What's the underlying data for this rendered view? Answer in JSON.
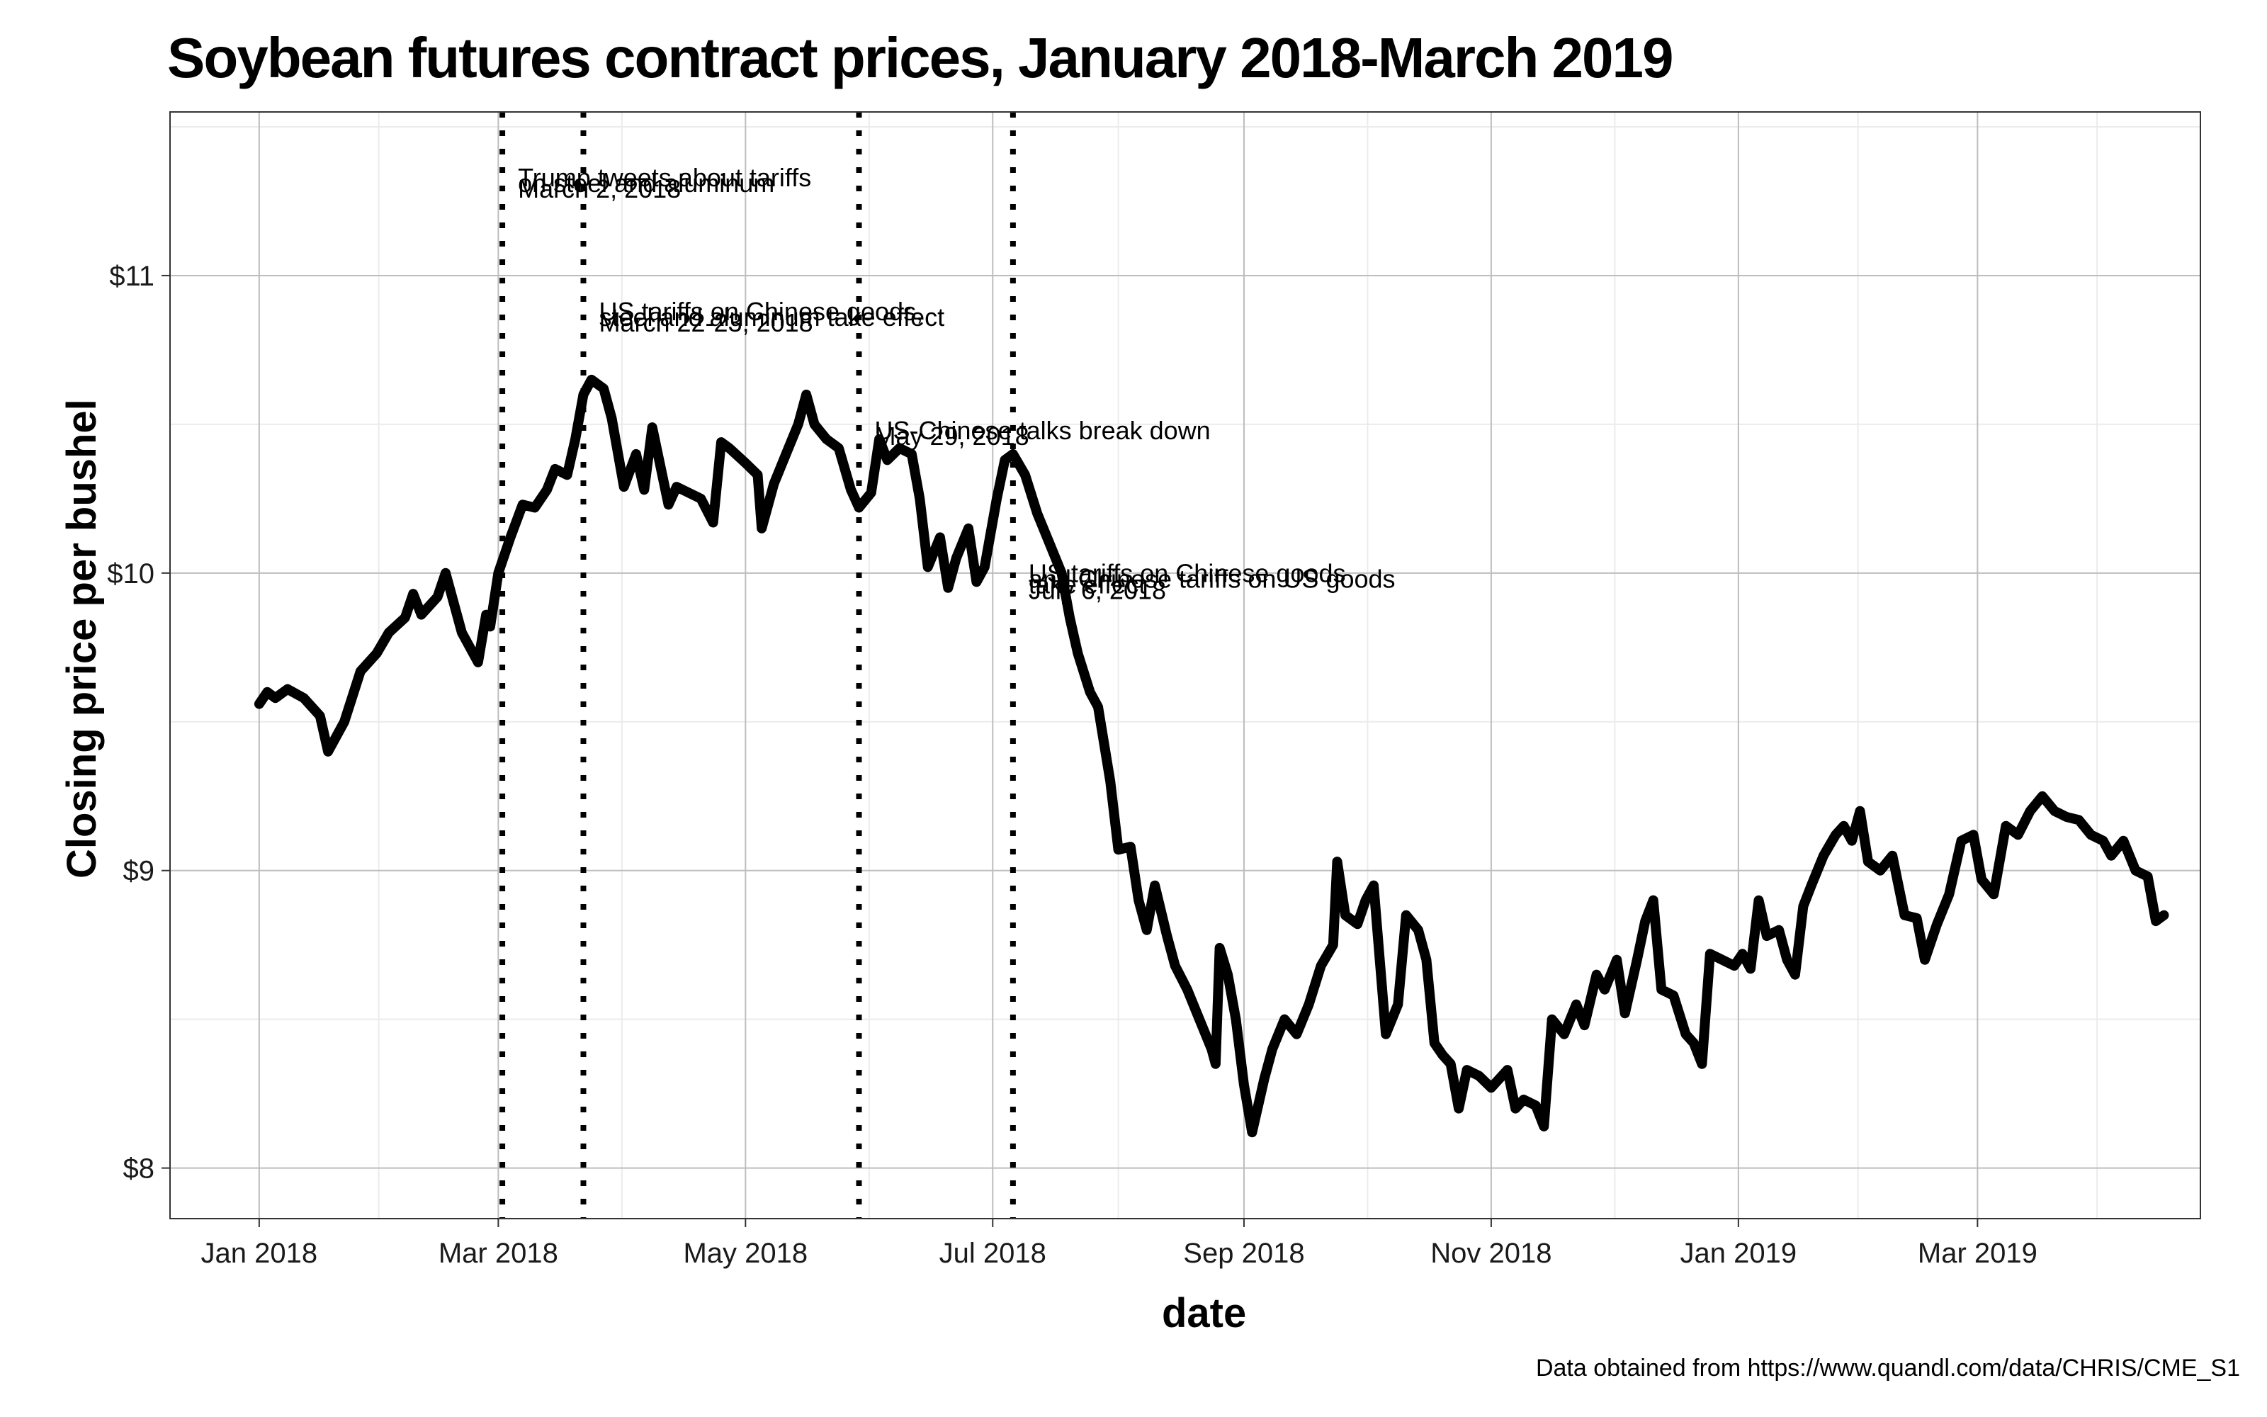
{
  "chart_data": {
    "type": "line",
    "title": "Soybean futures contract prices, January 2018-March 2019",
    "xlabel": "date",
    "ylabel": "Closing price per bushel",
    "caption": "Data obtained from https://www.quandl.com/data/CHRIS/CME_S1",
    "xlim": [
      "2017-12-10",
      "2019-04-25"
    ],
    "ylim": [
      7.83,
      11.55
    ],
    "grid": true,
    "x_ticks": [
      {
        "date": "2018-01-01",
        "label": "Jan 2018"
      },
      {
        "date": "2018-03-01",
        "label": "Mar 2018"
      },
      {
        "date": "2018-05-01",
        "label": "May 2018"
      },
      {
        "date": "2018-07-01",
        "label": "Jul 2018"
      },
      {
        "date": "2018-09-01",
        "label": "Sep 2018"
      },
      {
        "date": "2018-11-01",
        "label": "Nov 2018"
      },
      {
        "date": "2019-01-01",
        "label": "Jan 2019"
      },
      {
        "date": "2019-03-01",
        "label": "Mar 2019"
      }
    ],
    "y_ticks": [
      {
        "value": 8,
        "label": "$8"
      },
      {
        "value": 9,
        "label": "$9"
      },
      {
        "value": 10,
        "label": "$10"
      },
      {
        "value": 11,
        "label": "$11"
      }
    ],
    "events": [
      {
        "date": "2018-03-02",
        "label_y": 11.3,
        "lines": [
          "Trump tweets about tariffs",
          "on steel and aluminum",
          "March 2, 2018"
        ]
      },
      {
        "date": "2018-03-22",
        "label_y": 10.85,
        "lines": [
          "US tariffs on Chinese goods,",
          "steel and aluminum take effect",
          "March 22-23, 2018"
        ]
      },
      {
        "date": "2018-05-29",
        "label_y": 10.45,
        "lines": [
          "US-Chinese talks break down",
          "May 29, 2018"
        ]
      },
      {
        "date": "2018-07-06",
        "label_y": 9.97,
        "lines": [
          "US tariffs on Chinese goods",
          "and Chinese tariffs on US goods",
          "take effect",
          "July 6, 2018"
        ]
      }
    ],
    "series": [
      {
        "color": "#000000",
        "points": [
          [
            "2018-01-01",
            9.56
          ],
          [
            "2018-01-03",
            9.6
          ],
          [
            "2018-01-05",
            9.58
          ],
          [
            "2018-01-08",
            9.61
          ],
          [
            "2018-01-12",
            9.58
          ],
          [
            "2018-01-16",
            9.52
          ],
          [
            "2018-01-18",
            9.4
          ],
          [
            "2018-01-22",
            9.5
          ],
          [
            "2018-01-26",
            9.67
          ],
          [
            "2018-01-30",
            9.73
          ],
          [
            "2018-02-02",
            9.8
          ],
          [
            "2018-02-06",
            9.85
          ],
          [
            "2018-02-08",
            9.93
          ],
          [
            "2018-02-10",
            9.86
          ],
          [
            "2018-02-14",
            9.92
          ],
          [
            "2018-02-16",
            10.0
          ],
          [
            "2018-02-20",
            9.8
          ],
          [
            "2018-02-24",
            9.7
          ],
          [
            "2018-02-26",
            9.86
          ],
          [
            "2018-02-27",
            9.82
          ],
          [
            "2018-03-01",
            10.0
          ],
          [
            "2018-03-04",
            10.12
          ],
          [
            "2018-03-07",
            10.23
          ],
          [
            "2018-03-10",
            10.22
          ],
          [
            "2018-03-13",
            10.28
          ],
          [
            "2018-03-15",
            10.35
          ],
          [
            "2018-03-18",
            10.33
          ],
          [
            "2018-03-20",
            10.45
          ],
          [
            "2018-03-22",
            10.6
          ],
          [
            "2018-03-24",
            10.65
          ],
          [
            "2018-03-27",
            10.62
          ],
          [
            "2018-03-29",
            10.52
          ],
          [
            "2018-04-01",
            10.29
          ],
          [
            "2018-04-04",
            10.4
          ],
          [
            "2018-04-06",
            10.28
          ],
          [
            "2018-04-08",
            10.49
          ],
          [
            "2018-04-12",
            10.23
          ],
          [
            "2018-04-14",
            10.29
          ],
          [
            "2018-04-20",
            10.25
          ],
          [
            "2018-04-23",
            10.17
          ],
          [
            "2018-04-25",
            10.44
          ],
          [
            "2018-04-27",
            10.42
          ],
          [
            "2018-05-01",
            10.37
          ],
          [
            "2018-05-04",
            10.33
          ],
          [
            "2018-05-05",
            10.15
          ],
          [
            "2018-05-08",
            10.3
          ],
          [
            "2018-05-11",
            10.4
          ],
          [
            "2018-05-14",
            10.5
          ],
          [
            "2018-05-16",
            10.6
          ],
          [
            "2018-05-18",
            10.5
          ],
          [
            "2018-05-21",
            10.45
          ],
          [
            "2018-05-24",
            10.42
          ],
          [
            "2018-05-27",
            10.28
          ],
          [
            "2018-05-29",
            10.22
          ],
          [
            "2018-06-01",
            10.27
          ],
          [
            "2018-06-03",
            10.45
          ],
          [
            "2018-06-05",
            10.38
          ],
          [
            "2018-06-08",
            10.42
          ],
          [
            "2018-06-11",
            10.4
          ],
          [
            "2018-06-13",
            10.25
          ],
          [
            "2018-06-15",
            10.02
          ],
          [
            "2018-06-18",
            10.12
          ],
          [
            "2018-06-20",
            9.95
          ],
          [
            "2018-06-22",
            10.05
          ],
          [
            "2018-06-25",
            10.15
          ],
          [
            "2018-06-27",
            9.97
          ],
          [
            "2018-06-29",
            10.02
          ],
          [
            "2018-07-02",
            10.25
          ],
          [
            "2018-07-04",
            10.38
          ],
          [
            "2018-07-06",
            10.4
          ],
          [
            "2018-07-09",
            10.33
          ],
          [
            "2018-07-12",
            10.2
          ],
          [
            "2018-07-15",
            10.1
          ],
          [
            "2018-07-18",
            10.0
          ],
          [
            "2018-07-20",
            9.85
          ],
          [
            "2018-07-22",
            9.73
          ],
          [
            "2018-07-25",
            9.6
          ],
          [
            "2018-07-27",
            9.55
          ],
          [
            "2018-07-30",
            9.3
          ],
          [
            "2018-08-01",
            9.07
          ],
          [
            "2018-08-04",
            9.08
          ],
          [
            "2018-08-06",
            8.9
          ],
          [
            "2018-08-08",
            8.8
          ],
          [
            "2018-08-10",
            8.95
          ],
          [
            "2018-08-13",
            8.78
          ],
          [
            "2018-08-15",
            8.68
          ],
          [
            "2018-08-18",
            8.6
          ],
          [
            "2018-08-21",
            8.5
          ],
          [
            "2018-08-24",
            8.4
          ],
          [
            "2018-08-25",
            8.35
          ],
          [
            "2018-08-26",
            8.74
          ],
          [
            "2018-08-28",
            8.65
          ],
          [
            "2018-08-30",
            8.5
          ],
          [
            "2018-09-01",
            8.28
          ],
          [
            "2018-09-03",
            8.12
          ],
          [
            "2018-09-06",
            8.3
          ],
          [
            "2018-09-08",
            8.4
          ],
          [
            "2018-09-11",
            8.5
          ],
          [
            "2018-09-14",
            8.45
          ],
          [
            "2018-09-17",
            8.55
          ],
          [
            "2018-09-20",
            8.68
          ],
          [
            "2018-09-23",
            8.75
          ],
          [
            "2018-09-24",
            9.03
          ],
          [
            "2018-09-26",
            8.85
          ],
          [
            "2018-09-29",
            8.82
          ],
          [
            "2018-10-01",
            8.9
          ],
          [
            "2018-10-03",
            8.95
          ],
          [
            "2018-10-06",
            8.45
          ],
          [
            "2018-10-09",
            8.55
          ],
          [
            "2018-10-11",
            8.85
          ],
          [
            "2018-10-14",
            8.8
          ],
          [
            "2018-10-16",
            8.7
          ],
          [
            "2018-10-18",
            8.42
          ],
          [
            "2018-10-20",
            8.38
          ],
          [
            "2018-10-22",
            8.35
          ],
          [
            "2018-10-24",
            8.2
          ],
          [
            "2018-10-26",
            8.33
          ],
          [
            "2018-10-29",
            8.31
          ],
          [
            "2018-11-01",
            8.27
          ],
          [
            "2018-11-03",
            8.3
          ],
          [
            "2018-11-05",
            8.33
          ],
          [
            "2018-11-07",
            8.2
          ],
          [
            "2018-11-09",
            8.23
          ],
          [
            "2018-11-12",
            8.21
          ],
          [
            "2018-11-14",
            8.14
          ],
          [
            "2018-11-16",
            8.5
          ],
          [
            "2018-11-19",
            8.45
          ],
          [
            "2018-11-22",
            8.55
          ],
          [
            "2018-11-24",
            8.48
          ],
          [
            "2018-11-27",
            8.65
          ],
          [
            "2018-11-29",
            8.6
          ],
          [
            "2018-12-02",
            8.7
          ],
          [
            "2018-12-04",
            8.52
          ],
          [
            "2018-12-07",
            8.7
          ],
          [
            "2018-12-09",
            8.83
          ],
          [
            "2018-12-11",
            8.9
          ],
          [
            "2018-12-13",
            8.6
          ],
          [
            "2018-12-16",
            8.58
          ],
          [
            "2018-12-19",
            8.45
          ],
          [
            "2018-12-21",
            8.42
          ],
          [
            "2018-12-23",
            8.35
          ],
          [
            "2018-12-25",
            8.72
          ],
          [
            "2018-12-28",
            8.7
          ],
          [
            "2018-12-31",
            8.68
          ],
          [
            "2019-01-02",
            8.72
          ],
          [
            "2019-01-04",
            8.67
          ],
          [
            "2019-01-06",
            8.9
          ],
          [
            "2019-01-08",
            8.78
          ],
          [
            "2019-01-11",
            8.8
          ],
          [
            "2019-01-13",
            8.7
          ],
          [
            "2019-01-15",
            8.65
          ],
          [
            "2019-01-17",
            8.88
          ],
          [
            "2019-01-19",
            8.95
          ],
          [
            "2019-01-22",
            9.05
          ],
          [
            "2019-01-25",
            9.12
          ],
          [
            "2019-01-27",
            9.15
          ],
          [
            "2019-01-29",
            9.1
          ],
          [
            "2019-01-31",
            9.2
          ],
          [
            "2019-02-02",
            9.03
          ],
          [
            "2019-02-05",
            9.0
          ],
          [
            "2019-02-08",
            9.05
          ],
          [
            "2019-02-11",
            8.85
          ],
          [
            "2019-02-14",
            8.84
          ],
          [
            "2019-02-16",
            8.7
          ],
          [
            "2019-02-19",
            8.82
          ],
          [
            "2019-02-22",
            8.92
          ],
          [
            "2019-02-25",
            9.1
          ],
          [
            "2019-02-28",
            9.12
          ],
          [
            "2019-03-02",
            8.97
          ],
          [
            "2019-03-05",
            8.92
          ],
          [
            "2019-03-08",
            9.15
          ],
          [
            "2019-03-11",
            9.12
          ],
          [
            "2019-03-14",
            9.2
          ],
          [
            "2019-03-17",
            9.25
          ],
          [
            "2019-03-20",
            9.2
          ],
          [
            "2019-03-23",
            9.18
          ],
          [
            "2019-03-26",
            9.17
          ],
          [
            "2019-03-29",
            9.12
          ],
          [
            "2019-04-01",
            9.1
          ],
          [
            "2019-04-03",
            9.05
          ],
          [
            "2019-04-06",
            9.1
          ],
          [
            "2019-04-09",
            9.0
          ],
          [
            "2019-04-12",
            8.98
          ],
          [
            "2019-04-14",
            8.83
          ],
          [
            "2019-04-16",
            8.85
          ]
        ]
      }
    ]
  }
}
